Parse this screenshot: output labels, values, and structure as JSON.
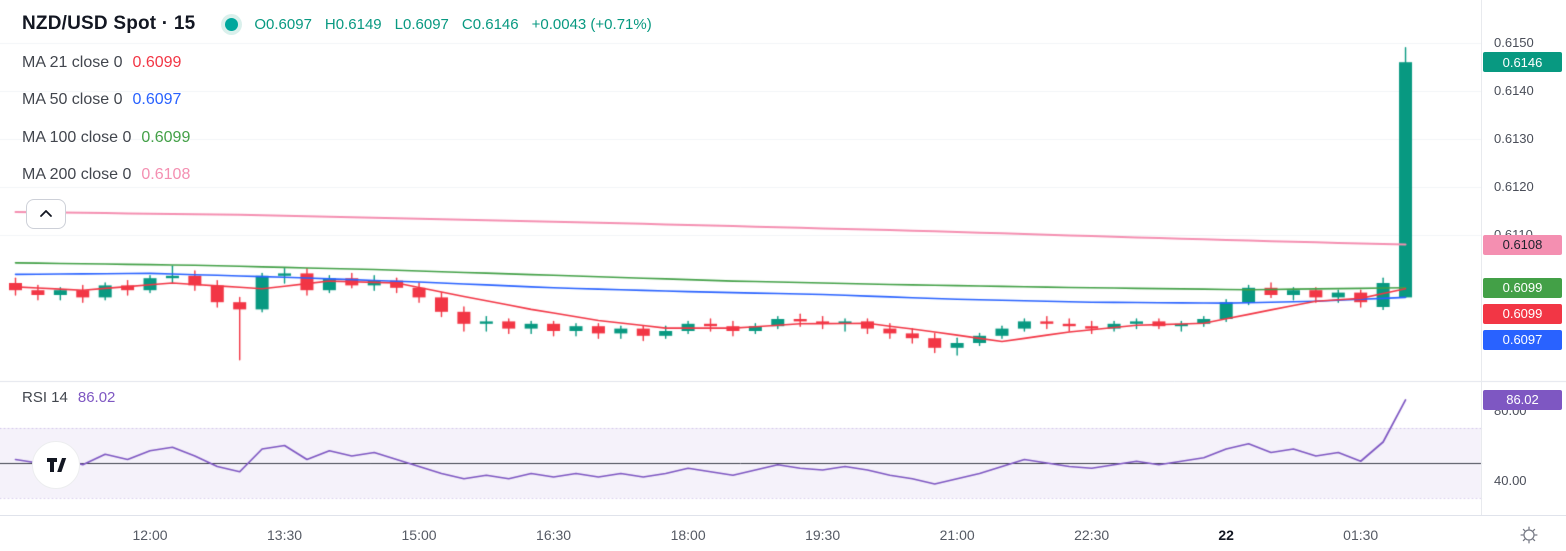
{
  "header": {
    "title": "NZD/USD Spot · 15",
    "ohlc": {
      "o_label": "O",
      "o": "0.6097",
      "h_label": "H",
      "h": "0.6149",
      "l_label": "L",
      "l": "0.6097",
      "c_label": "C",
      "c": "0.6146",
      "change": "+0.0043 (+0.71%)"
    }
  },
  "indicators": [
    {
      "label": "MA 21 close 0",
      "value": "0.6099",
      "color": "#F23645"
    },
    {
      "label": "MA 50 close 0",
      "value": "0.6097",
      "color": "#2962FF"
    },
    {
      "label": "MA 100 close 0",
      "value": "0.6099",
      "color": "#43A047"
    },
    {
      "label": "MA 200 close 0",
      "value": "0.6108",
      "color": "#F48FB1"
    }
  ],
  "rsi_legend": {
    "label": "RSI 14",
    "value": "86.02"
  },
  "colors": {
    "up": "#089981",
    "down": "#F23645",
    "ohlc_text": "#089981",
    "rsi": "#7E57C2",
    "rsi_mid_line": "#3A3E49",
    "status_dot": "#00A79D",
    "axis_text": "#4A4E59",
    "grid": "#F2F4F7",
    "separator": "#E0E3EB"
  },
  "price_axis": {
    "ticks": [
      {
        "label": "0.6150",
        "value": 0.615
      },
      {
        "label": "0.6140",
        "value": 0.614
      },
      {
        "label": "0.6130",
        "value": 0.613
      },
      {
        "label": "0.6120",
        "value": 0.612
      },
      {
        "label": "0.6110",
        "value": 0.611
      }
    ],
    "badges": [
      {
        "name": "last-price-badge",
        "label": "0.6146",
        "value": 0.6146,
        "bg": "#089981",
        "fg": "#FFFFFF"
      },
      {
        "name": "ma-200-badge",
        "label": "0.6108",
        "value": 0.6108,
        "bg": "#F48FB1",
        "fg": "#1E222D"
      },
      {
        "name": "ma-100-badge",
        "label": "0.6099",
        "value": 0.6099,
        "bg": "#43A047",
        "fg": "#FFFFFF"
      },
      {
        "name": "ma-21-badge",
        "label": "0.6099",
        "value": 0.6099,
        "bg": "#F23645",
        "fg": "#FFFFFF"
      },
      {
        "name": "ma-50-badge",
        "label": "0.6097",
        "value": 0.6097,
        "bg": "#2962FF",
        "fg": "#FFFFFF"
      }
    ]
  },
  "rsi_axis": {
    "ticks": [
      {
        "label": "80.00",
        "value": 80
      },
      {
        "label": "40.00",
        "value": 40
      }
    ],
    "badge": {
      "label": "86.02",
      "value": 86.02,
      "bg": "#7E57C2",
      "fg": "#FFFFFF"
    }
  },
  "time_axis": {
    "ticks": [
      {
        "label": "12:00",
        "index": 6
      },
      {
        "label": "13:30",
        "index": 12
      },
      {
        "label": "15:00",
        "index": 18
      },
      {
        "label": "16:30",
        "index": 24
      },
      {
        "label": "18:00",
        "index": 30
      },
      {
        "label": "19:30",
        "index": 36
      },
      {
        "label": "21:00",
        "index": 42
      },
      {
        "label": "22:30",
        "index": 48
      },
      {
        "label": "22",
        "index": 54,
        "major": true
      },
      {
        "label": "01:30",
        "index": 60
      }
    ]
  },
  "chart_data": {
    "type": "candlestick",
    "symbol": "NZD/USD Spot",
    "interval": "15",
    "price_range_visible": [
      0.6083,
      0.6159
    ],
    "rsi_range_visible": [
      24,
      94
    ],
    "rsi_bands": {
      "upper": 70,
      "mid": 50,
      "lower": 30
    },
    "last_bar_summary": {
      "open": 0.6097,
      "high": 0.6149,
      "low": 0.6097,
      "close": 0.6146,
      "change": 0.0043,
      "change_pct": 0.71
    },
    "ohlc": [
      [
        0.61,
        0.6101,
        0.60975,
        0.60985
      ],
      [
        0.60985,
        0.60995,
        0.60965,
        0.60975
      ],
      [
        0.60975,
        0.6099,
        0.60965,
        0.60985
      ],
      [
        0.60985,
        0.60995,
        0.6096,
        0.6097
      ],
      [
        0.6097,
        0.61,
        0.60965,
        0.60995
      ],
      [
        0.60995,
        0.61005,
        0.60975,
        0.60985
      ],
      [
        0.60985,
        0.61015,
        0.6098,
        0.6101
      ],
      [
        0.6101,
        0.61035,
        0.61,
        0.61015
      ],
      [
        0.61015,
        0.61025,
        0.60985,
        0.60995
      ],
      [
        0.60995,
        0.61005,
        0.6095,
        0.6096
      ],
      [
        0.6096,
        0.6097,
        0.6084,
        0.60945
      ],
      [
        0.60945,
        0.6102,
        0.6094,
        0.61015
      ],
      [
        0.61015,
        0.6103,
        0.61,
        0.6102
      ],
      [
        0.6102,
        0.6103,
        0.60975,
        0.60985
      ],
      [
        0.60985,
        0.61015,
        0.6098,
        0.6101
      ],
      [
        0.6101,
        0.6102,
        0.6099,
        0.60995
      ],
      [
        0.60995,
        0.61015,
        0.60985,
        0.61005
      ],
      [
        0.61005,
        0.6101,
        0.6098,
        0.6099
      ],
      [
        0.6099,
        0.61,
        0.6096,
        0.6097
      ],
      [
        0.6097,
        0.6098,
        0.6093,
        0.6094
      ],
      [
        0.6094,
        0.6095,
        0.609,
        0.60915
      ],
      [
        0.60915,
        0.6093,
        0.609,
        0.6092
      ],
      [
        0.6092,
        0.60925,
        0.60895,
        0.60905
      ],
      [
        0.60905,
        0.6092,
        0.60895,
        0.60915
      ],
      [
        0.60915,
        0.6092,
        0.6089,
        0.609
      ],
      [
        0.609,
        0.60915,
        0.6089,
        0.6091
      ],
      [
        0.6091,
        0.60915,
        0.60885,
        0.60895
      ],
      [
        0.60895,
        0.6091,
        0.60885,
        0.60905
      ],
      [
        0.60905,
        0.6091,
        0.6088,
        0.6089
      ],
      [
        0.6089,
        0.6091,
        0.60885,
        0.609
      ],
      [
        0.609,
        0.6092,
        0.60895,
        0.60915
      ],
      [
        0.60915,
        0.60925,
        0.609,
        0.6091
      ],
      [
        0.6091,
        0.6092,
        0.6089,
        0.609
      ],
      [
        0.609,
        0.60915,
        0.60895,
        0.6091
      ],
      [
        0.6091,
        0.6093,
        0.60905,
        0.60925
      ],
      [
        0.60925,
        0.60935,
        0.6091,
        0.6092
      ],
      [
        0.6092,
        0.6093,
        0.60905,
        0.60915
      ],
      [
        0.60915,
        0.60925,
        0.609,
        0.6092
      ],
      [
        0.6092,
        0.60925,
        0.60895,
        0.60905
      ],
      [
        0.60905,
        0.60915,
        0.60885,
        0.60895
      ],
      [
        0.60895,
        0.60905,
        0.60875,
        0.60885
      ],
      [
        0.60885,
        0.60895,
        0.60855,
        0.60865
      ],
      [
        0.60865,
        0.60885,
        0.6085,
        0.60875
      ],
      [
        0.60875,
        0.60895,
        0.6087,
        0.6089
      ],
      [
        0.6089,
        0.6091,
        0.60885,
        0.60905
      ],
      [
        0.60905,
        0.60925,
        0.609,
        0.6092
      ],
      [
        0.6092,
        0.6093,
        0.60905,
        0.60915
      ],
      [
        0.60915,
        0.60925,
        0.609,
        0.6091
      ],
      [
        0.6091,
        0.6092,
        0.60895,
        0.60905
      ],
      [
        0.60905,
        0.6092,
        0.609,
        0.60915
      ],
      [
        0.60915,
        0.60925,
        0.60905,
        0.6092
      ],
      [
        0.6092,
        0.60925,
        0.60905,
        0.6091
      ],
      [
        0.6091,
        0.6092,
        0.609,
        0.60915
      ],
      [
        0.60915,
        0.6093,
        0.6091,
        0.60925
      ],
      [
        0.60925,
        0.60965,
        0.6092,
        0.6096
      ],
      [
        0.6096,
        0.60995,
        0.60955,
        0.6099
      ],
      [
        0.6099,
        0.61,
        0.6097,
        0.60975
      ],
      [
        0.60975,
        0.6099,
        0.60965,
        0.60985
      ],
      [
        0.60985,
        0.6099,
        0.6096,
        0.6097
      ],
      [
        0.6097,
        0.60985,
        0.6096,
        0.6098
      ],
      [
        0.6098,
        0.60985,
        0.6095,
        0.6096
      ],
      [
        0.6095,
        0.6101,
        0.60945,
        0.61
      ],
      [
        0.6097,
        0.6149,
        0.6097,
        0.6146
      ]
    ],
    "ma_lines": [
      {
        "name": "MA 200",
        "color": "#F48FB1",
        "width": 2.0,
        "points": [
          [
            0,
            0.61148
          ],
          [
            10,
            0.61142
          ],
          [
            20,
            0.61132
          ],
          [
            30,
            0.61121
          ],
          [
            40,
            0.61109
          ],
          [
            50,
            0.61095
          ],
          [
            56,
            0.61087
          ],
          [
            62,
            0.6108
          ]
        ]
      },
      {
        "name": "MA 100",
        "color": "#43A047",
        "width": 1.6,
        "points": [
          [
            0,
            0.61042
          ],
          [
            8,
            0.61037
          ],
          [
            16,
            0.61028
          ],
          [
            24,
            0.61016
          ],
          [
            32,
            0.61004
          ],
          [
            40,
            0.60996
          ],
          [
            48,
            0.6099
          ],
          [
            55,
            0.60986
          ],
          [
            62,
            0.6099
          ]
        ]
      },
      {
        "name": "MA 50",
        "color": "#2962FF",
        "width": 1.6,
        "points": [
          [
            0,
            0.61018
          ],
          [
            6,
            0.6102
          ],
          [
            12,
            0.61012
          ],
          [
            18,
            0.61002
          ],
          [
            24,
            0.6099
          ],
          [
            30,
            0.60982
          ],
          [
            36,
            0.60976
          ],
          [
            42,
            0.60966
          ],
          [
            48,
            0.6096
          ],
          [
            54,
            0.60958
          ],
          [
            58,
            0.60962
          ],
          [
            62,
            0.6097
          ]
        ]
      },
      {
        "name": "MA 21",
        "color": "#F23645",
        "width": 1.6,
        "points": [
          [
            0,
            0.60992
          ],
          [
            3,
            0.60985
          ],
          [
            7,
            0.61
          ],
          [
            11,
            0.60988
          ],
          [
            14,
            0.61004
          ],
          [
            17,
            0.61
          ],
          [
            20,
            0.60972
          ],
          [
            23,
            0.60945
          ],
          [
            26,
            0.60922
          ],
          [
            29,
            0.60906
          ],
          [
            32,
            0.60906
          ],
          [
            35,
            0.60915
          ],
          [
            38,
            0.60916
          ],
          [
            41,
            0.60898
          ],
          [
            44,
            0.60878
          ],
          [
            47,
            0.60898
          ],
          [
            50,
            0.60912
          ],
          [
            53,
            0.60916
          ],
          [
            56,
            0.60944
          ],
          [
            58,
            0.60962
          ],
          [
            60,
            0.60968
          ],
          [
            62,
            0.60988
          ]
        ]
      }
    ],
    "rsi_values": [
      52,
      50,
      53,
      49,
      55,
      52,
      57,
      59,
      54,
      48,
      45,
      58,
      60,
      52,
      57,
      54,
      56,
      52,
      48,
      44,
      41,
      43,
      41,
      44,
      42,
      44,
      42,
      44,
      42,
      44,
      47,
      45,
      43,
      46,
      49,
      47,
      46,
      48,
      46,
      43,
      41,
      38,
      41,
      44,
      48,
      52,
      50,
      48,
      47,
      49,
      51,
      49,
      51,
      53,
      58,
      61,
      56,
      58,
      54,
      56,
      51,
      62,
      86.02
    ]
  }
}
